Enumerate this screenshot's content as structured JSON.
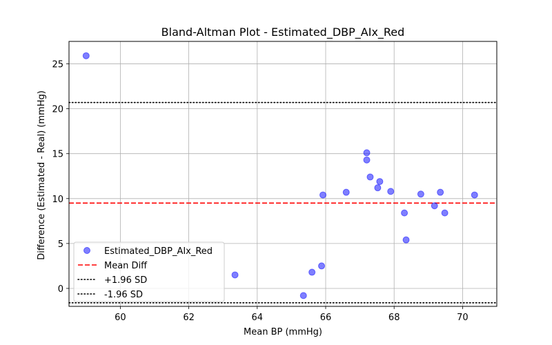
{
  "chart_data": {
    "type": "scatter",
    "title": "Bland-Altman Plot - Estimated_DBP_AIx_Red",
    "xlabel": "Mean BP (mmHg)",
    "ylabel": "Difference (Estimated - Real) (mmHg)",
    "xlim": [
      58.5,
      71.0
    ],
    "ylim": [
      -2.0,
      27.5
    ],
    "xticks": [
      60,
      62,
      64,
      66,
      68,
      70
    ],
    "yticks": [
      0,
      5,
      10,
      15,
      20,
      25
    ],
    "grid": true,
    "legend_position": "lower-left",
    "series": [
      {
        "name": "Estimated_DBP_AIx_Red",
        "color": "#0000ff",
        "points": [
          {
            "x": 59.0,
            "y": 25.9
          },
          {
            "x": 63.35,
            "y": 1.5
          },
          {
            "x": 65.35,
            "y": -0.8
          },
          {
            "x": 65.6,
            "y": 1.8
          },
          {
            "x": 65.88,
            "y": 2.5
          },
          {
            "x": 65.92,
            "y": 10.4
          },
          {
            "x": 66.6,
            "y": 10.7
          },
          {
            "x": 67.2,
            "y": 15.1
          },
          {
            "x": 67.2,
            "y": 14.3
          },
          {
            "x": 67.3,
            "y": 12.4
          },
          {
            "x": 67.52,
            "y": 11.2
          },
          {
            "x": 67.58,
            "y": 11.9
          },
          {
            "x": 67.9,
            "y": 10.8
          },
          {
            "x": 68.3,
            "y": 8.4
          },
          {
            "x": 68.35,
            "y": 5.4
          },
          {
            "x": 68.78,
            "y": 10.5
          },
          {
            "x": 69.18,
            "y": 9.2
          },
          {
            "x": 69.35,
            "y": 10.7
          },
          {
            "x": 69.48,
            "y": 8.4
          },
          {
            "x": 70.35,
            "y": 10.4
          }
        ]
      }
    ],
    "reference_lines": [
      {
        "name": "Mean Diff",
        "y": 9.5,
        "color": "#ff0000",
        "style": "dashed"
      },
      {
        "name": "+1.96 SD",
        "y": 20.7,
        "color": "#000000",
        "style": "dotted"
      },
      {
        "name": "-1.96 SD",
        "y": -1.6,
        "color": "#000000",
        "style": "dotted"
      }
    ]
  }
}
